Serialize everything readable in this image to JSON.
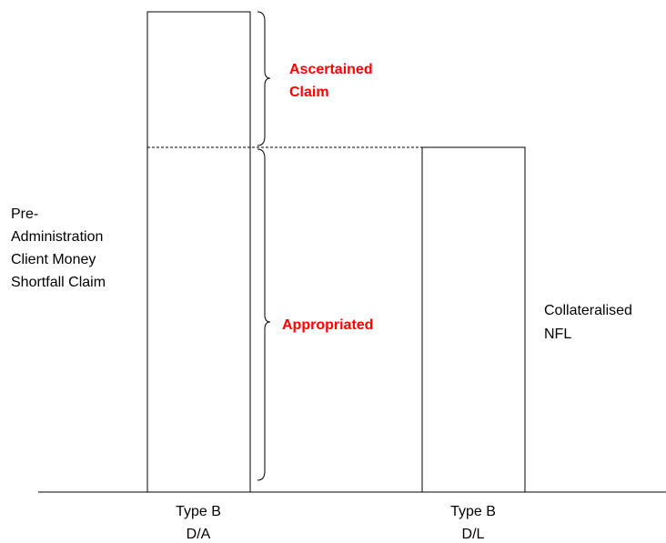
{
  "labels": {
    "left": [
      "Pre-",
      "Administration",
      "Client Money",
      "Shortfall Claim"
    ],
    "ascertained": [
      "Ascertained",
      "Claim"
    ],
    "appropriated": [
      "Appropriated"
    ],
    "right": [
      "Collateralised",
      "NFL"
    ],
    "bar1": [
      "Type B",
      "D/A"
    ],
    "bar2": [
      "Type B",
      "D/L"
    ]
  }
}
